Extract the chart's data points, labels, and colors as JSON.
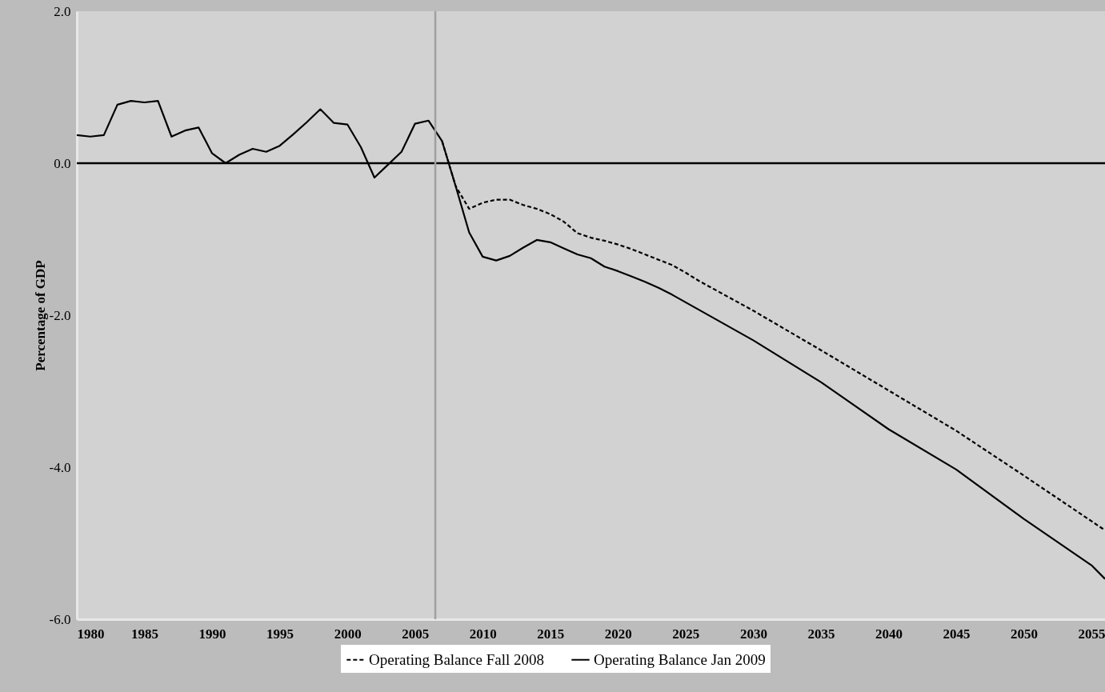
{
  "chart_data": {
    "type": "line",
    "ylabel": "Percentage of GDP",
    "xlim": [
      1980,
      2056
    ],
    "xticks": [
      1980,
      1985,
      1990,
      1995,
      2000,
      2005,
      2010,
      2015,
      2020,
      2025,
      2030,
      2035,
      2040,
      2045,
      2050,
      2055
    ],
    "ylim": [
      -6,
      2
    ],
    "yticks": [
      {
        "value": -6,
        "label": "-6.0"
      },
      {
        "value": -4,
        "label": "-4.0"
      },
      {
        "value": -2,
        "label": "-2.0"
      },
      {
        "value": 0,
        "label": "0.0"
      },
      {
        "value": 2,
        "label": "2.0"
      }
    ],
    "legend": "bottom",
    "marker": "none",
    "ref_lines": [
      {
        "axis": "y",
        "value": 0,
        "color": "#000000"
      },
      {
        "axis": "x",
        "value": 2006.5,
        "color": "#a0a0a0"
      }
    ],
    "series": [
      {
        "name": "Operating Balance Fall 2008",
        "color": "#000000",
        "line_style": "dashed",
        "x": [
          2007,
          2008,
          2009,
          2010,
          2011,
          2012,
          2013,
          2014,
          2015,
          2016,
          2017,
          2018,
          2019,
          2020,
          2021,
          2022,
          2023,
          2024,
          2025,
          2026,
          2030,
          2035,
          2040,
          2045,
          2050,
          2055,
          2056
        ],
        "values": [
          0.29,
          -0.3,
          -0.6,
          -0.52,
          -0.48,
          -0.48,
          -0.55,
          -0.6,
          -0.67,
          -0.77,
          -0.92,
          -0.98,
          -1.02,
          -1.07,
          -1.13,
          -1.2,
          -1.27,
          -1.34,
          -1.44,
          -1.55,
          -1.94,
          -2.46,
          -2.99,
          -3.52,
          -4.11,
          -4.71,
          -4.83
        ]
      },
      {
        "name": "Operating Balance Jan 2009",
        "color": "#000000",
        "line_style": "solid",
        "x": [
          1980,
          1981,
          1982,
          1983,
          1984,
          1985,
          1986,
          1987,
          1988,
          1989,
          1990,
          1991,
          1992,
          1993,
          1994,
          1995,
          1996,
          1997,
          1998,
          1999,
          2000,
          2001,
          2002,
          2003,
          2004,
          2005,
          2006,
          2007,
          2008,
          2009,
          2010,
          2011,
          2012,
          2013,
          2014,
          2015,
          2016,
          2017,
          2018,
          2019,
          2020,
          2021,
          2022,
          2023,
          2024,
          2025,
          2026,
          2030,
          2035,
          2040,
          2045,
          2050,
          2055,
          2056
        ],
        "values": [
          0.37,
          0.35,
          0.37,
          0.77,
          0.82,
          0.8,
          0.82,
          0.35,
          0.43,
          0.47,
          0.13,
          0.0,
          0.11,
          0.19,
          0.15,
          0.23,
          0.38,
          0.54,
          0.71,
          0.53,
          0.51,
          0.21,
          -0.19,
          -0.02,
          0.15,
          0.52,
          0.56,
          0.29,
          -0.3,
          -0.91,
          -1.23,
          -1.28,
          -1.22,
          -1.11,
          -1.01,
          -1.04,
          -1.12,
          -1.2,
          -1.25,
          -1.36,
          -1.42,
          -1.49,
          -1.56,
          -1.64,
          -1.73,
          -1.83,
          -1.93,
          -2.33,
          -2.88,
          -3.5,
          -4.03,
          -4.68,
          -5.29,
          -5.47
        ]
      }
    ]
  }
}
